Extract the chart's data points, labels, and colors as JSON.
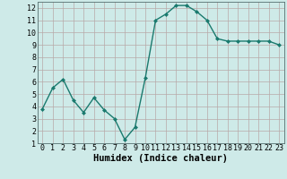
{
  "x": [
    0,
    1,
    2,
    3,
    4,
    5,
    6,
    7,
    8,
    9,
    10,
    11,
    12,
    13,
    14,
    15,
    16,
    17,
    18,
    19,
    20,
    21,
    22,
    23
  ],
  "y": [
    3.8,
    5.5,
    6.2,
    4.5,
    3.5,
    4.7,
    3.7,
    3.0,
    1.3,
    2.3,
    6.3,
    11.0,
    11.5,
    12.2,
    12.2,
    11.7,
    11.0,
    9.5,
    9.3,
    9.3,
    9.3,
    9.3,
    9.3,
    9.0
  ],
  "line_color": "#1a7a6e",
  "marker": "D",
  "marker_size": 2.0,
  "bg_color": "#ceeae8",
  "grid_color": "#b8a8a8",
  "xlabel": "Humidex (Indice chaleur)",
  "ylim": [
    1,
    12.5
  ],
  "xlim": [
    -0.5,
    23.5
  ],
  "yticks": [
    1,
    2,
    3,
    4,
    5,
    6,
    7,
    8,
    9,
    10,
    11,
    12
  ],
  "xticks": [
    0,
    1,
    2,
    3,
    4,
    5,
    6,
    7,
    8,
    9,
    10,
    11,
    12,
    13,
    14,
    15,
    16,
    17,
    18,
    19,
    20,
    21,
    22,
    23
  ],
  "xlabel_fontsize": 7.5,
  "tick_fontsize": 6.0,
  "line_width": 1.0
}
